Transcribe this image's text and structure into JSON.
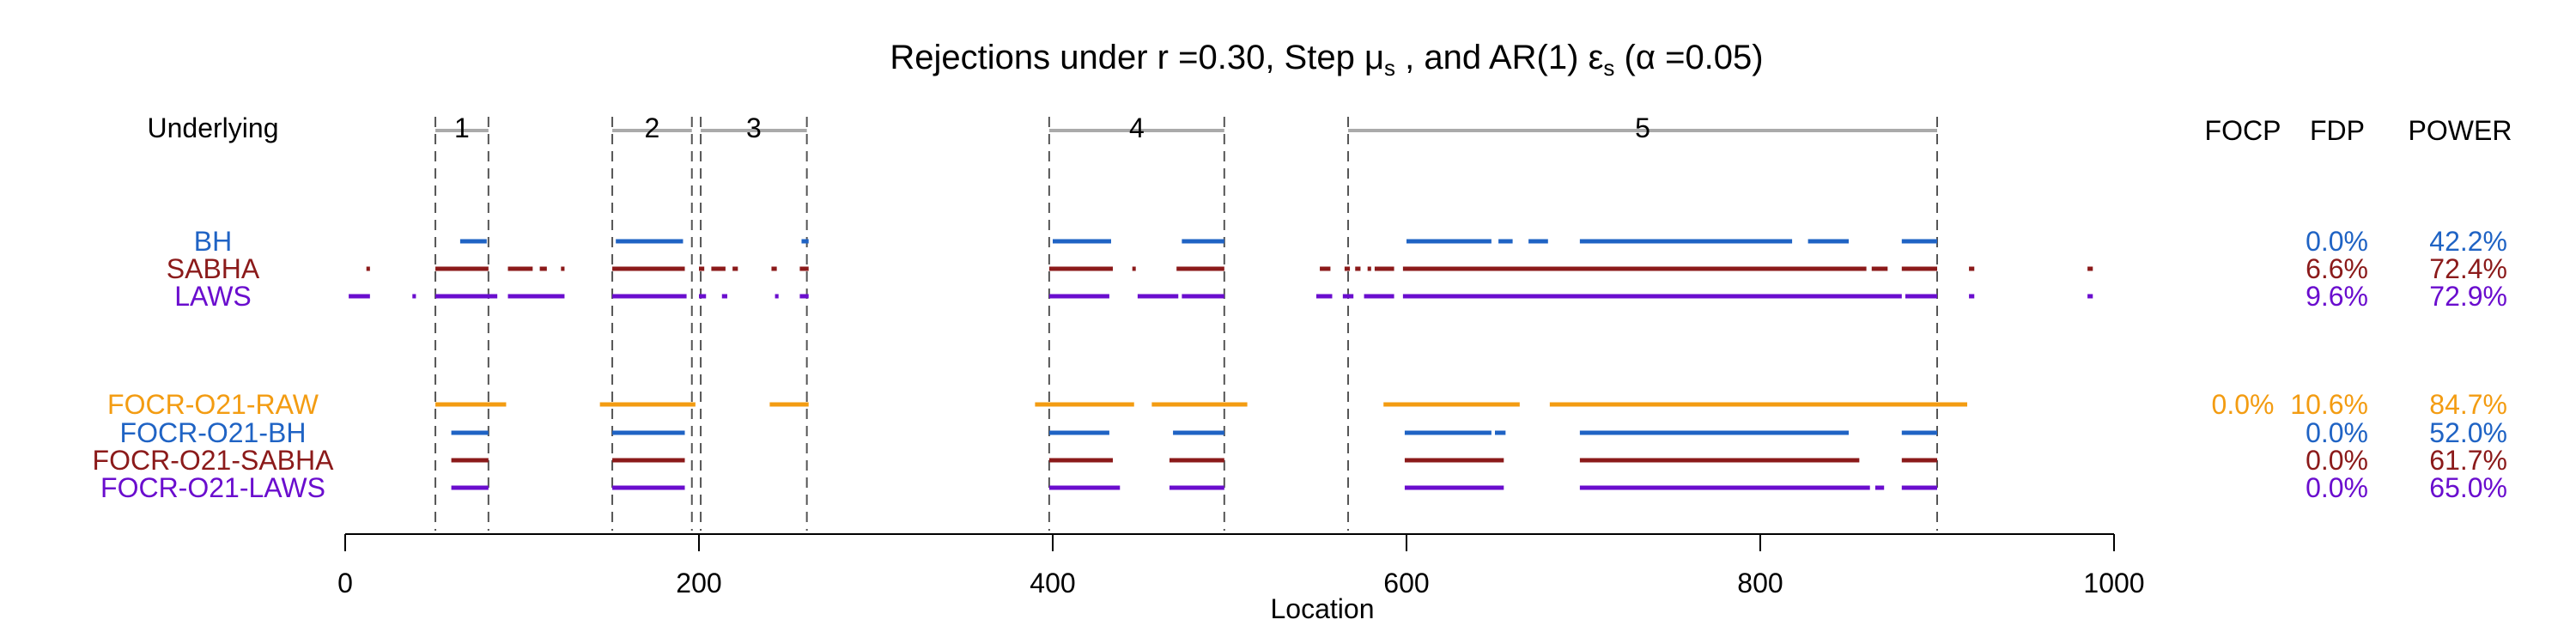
{
  "chart_data": {
    "type": "scatter",
    "title": "Rejections under  r =0.30,  Step μ",
    "title_parts": {
      "prefix": "Rejections under  r =0.30,  Step ",
      "mu": "μ",
      "mu_sub": "s",
      "mid": " , and AR(1)  ",
      "eps": "ε",
      "eps_sub": "s",
      "suffix": "  (α =0.05)"
    },
    "xlabel": "Location",
    "xlim": [
      0,
      1000
    ],
    "xticks": [
      0,
      200,
      400,
      600,
      800,
      1000
    ],
    "underlying_label": "Underlying",
    "underlying_segments": [
      {
        "label": "1",
        "start": 51,
        "end": 81
      },
      {
        "label": "2",
        "start": 151,
        "end": 196
      },
      {
        "label": "3",
        "start": 201,
        "end": 261
      },
      {
        "label": "4",
        "start": 398,
        "end": 497
      },
      {
        "label": "5",
        "start": 567,
        "end": 900
      }
    ],
    "column_headers": {
      "focp": "FOCP",
      "fdp": "FDP",
      "power": "POWER"
    },
    "methods": [
      {
        "name": "BH",
        "color": "#1f63c4",
        "focp": "",
        "fdp": "0.0%",
        "power": "42.2%",
        "intervals": [
          [
            65,
            80
          ],
          [
            153,
            191
          ],
          [
            258,
            262
          ],
          [
            400,
            433
          ],
          [
            473,
            497
          ],
          [
            600,
            648
          ],
          [
            652,
            660
          ],
          [
            669,
            680
          ],
          [
            698,
            700
          ],
          [
            700,
            818
          ],
          [
            827,
            850
          ],
          [
            880,
            900
          ]
        ]
      },
      {
        "name": "SABHA",
        "color": "#8b1a1a",
        "focp": "",
        "fdp": "6.6%",
        "power": "72.4%",
        "intervals": [
          [
            12,
            14
          ],
          [
            51,
            81
          ],
          [
            92,
            106
          ],
          [
            110,
            114
          ],
          [
            122,
            124
          ],
          [
            151,
            192
          ],
          [
            200,
            203
          ],
          [
            207,
            215
          ],
          [
            219,
            222
          ],
          [
            241,
            244
          ],
          [
            257,
            262
          ],
          [
            398,
            434
          ],
          [
            445,
            446
          ],
          [
            470,
            497
          ],
          [
            551,
            557
          ],
          [
            565,
            568
          ],
          [
            571,
            574
          ],
          [
            578,
            580
          ],
          [
            582,
            593
          ],
          [
            598,
            860
          ],
          [
            863,
            872
          ],
          [
            880,
            900
          ],
          [
            918,
            921
          ],
          [
            985,
            988
          ]
        ]
      },
      {
        "name": "LAWS",
        "color": "#6a0dce",
        "focp": "",
        "fdp": "9.6%",
        "power": "72.9%",
        "intervals": [
          [
            2,
            14
          ],
          [
            38,
            40
          ],
          [
            51,
            86
          ],
          [
            92,
            124
          ],
          [
            151,
            193
          ],
          [
            200,
            204
          ],
          [
            213,
            216
          ],
          [
            243,
            245
          ],
          [
            257,
            262
          ],
          [
            398,
            432
          ],
          [
            448,
            471
          ],
          [
            473,
            497
          ],
          [
            549,
            558
          ],
          [
            564,
            570
          ],
          [
            576,
            593
          ],
          [
            598,
            880
          ],
          [
            882,
            900
          ],
          [
            918,
            921
          ],
          [
            985,
            988
          ]
        ]
      },
      {
        "name": "FOCR-O21-RAW",
        "color": "#f39c12",
        "focp": "0.0%",
        "fdp": "10.6%",
        "power": "84.7%",
        "intervals": [
          [
            51,
            91
          ],
          [
            144,
            198
          ],
          [
            240,
            262
          ],
          [
            390,
            446
          ],
          [
            456,
            510
          ],
          [
            587,
            664
          ],
          [
            681,
            917
          ]
        ]
      },
      {
        "name": "FOCR-O21-BH",
        "color": "#1f63c4",
        "focp": "",
        "fdp": "0.0%",
        "power": "52.0%",
        "intervals": [
          [
            60,
            81
          ],
          [
            151,
            192
          ],
          [
            398,
            432
          ],
          [
            468,
            497
          ],
          [
            599,
            648
          ],
          [
            650,
            656
          ],
          [
            698,
            850
          ],
          [
            880,
            900
          ]
        ]
      },
      {
        "name": "FOCR-O21-SABHA",
        "color": "#8b1a1a",
        "focp": "",
        "fdp": "0.0%",
        "power": "61.7%",
        "intervals": [
          [
            60,
            81
          ],
          [
            151,
            192
          ],
          [
            398,
            434
          ],
          [
            466,
            497
          ],
          [
            599,
            655
          ],
          [
            698,
            856
          ],
          [
            880,
            900
          ]
        ]
      },
      {
        "name": "FOCR-O21-LAWS",
        "color": "#6a0dce",
        "focp": "",
        "fdp": "0.0%",
        "power": "65.0%",
        "intervals": [
          [
            60,
            81
          ],
          [
            151,
            192
          ],
          [
            398,
            438
          ],
          [
            466,
            497
          ],
          [
            599,
            655
          ],
          [
            698,
            862
          ],
          [
            865,
            870
          ],
          [
            880,
            900
          ]
        ]
      }
    ]
  }
}
